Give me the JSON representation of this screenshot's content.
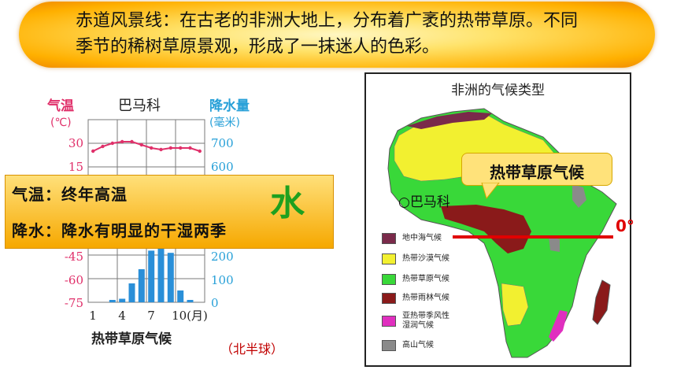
{
  "banner": {
    "line1": "赤道风景线：在古老的非洲大地上，分布着广袤的热带草原。不同",
    "line2": "季节的稀树草原景观，形成了一抹迷人的色彩。"
  },
  "climograph": {
    "station": "巴马科",
    "left_axis_title": "气温",
    "left_axis_unit": "(℃)",
    "right_axis_title": "降水量",
    "right_axis_unit": "(毫米)",
    "temp_ticks": [
      "30",
      "15",
      "-45",
      "-60",
      "-75"
    ],
    "precip_ticks": [
      "700",
      "600",
      "200",
      "100",
      "0"
    ],
    "month_ticks": [
      "1",
      "4",
      "7",
      "10(月)"
    ],
    "climate_type": "热带草原气候",
    "hemisphere": "（北半球）",
    "colors": {
      "temp_line": "#e0306a",
      "bars": "#2a8fd8",
      "axis_title": "#e0306a",
      "precip_title": "#27a0d8"
    }
  },
  "chart_data": {
    "type": "bar",
    "title": "巴马科",
    "xlabel": "(月)",
    "categories": [
      "1",
      "2",
      "3",
      "4",
      "5",
      "6",
      "7",
      "8",
      "9",
      "10",
      "11",
      "12"
    ],
    "series": [
      {
        "name": "降水量",
        "values": [
          0,
          0,
          10,
          15,
          80,
          140,
          220,
          310,
          210,
          50,
          10,
          0
        ]
      },
      {
        "name": "气温",
        "values": [
          25,
          28,
          30,
          31,
          31,
          29,
          27,
          26,
          27,
          27,
          27,
          25
        ]
      }
    ],
    "ylim_temp": [
      -75,
      30
    ],
    "ylim_precip": [
      0,
      700
    ]
  },
  "info": {
    "temp_line": "气温：终年高温",
    "precip_line": "降水：降水有明显的干湿两季",
    "water_char": "水"
  },
  "map": {
    "title": "非洲的气候类型",
    "callout": "热带草原气候",
    "bamako_label": "○巴马科",
    "equator_label": "0°",
    "legend": [
      {
        "label": "地中海气候",
        "color": "#7a2a4a"
      },
      {
        "label": "热带沙漠气候",
        "color": "#f2f030"
      },
      {
        "label": "热带草原气候",
        "color": "#39d839"
      },
      {
        "label": "热带雨林气候",
        "color": "#8a1a1a"
      },
      {
        "label": "亚热带季风性湿润气候",
        "label_line1": "亚热带季风性",
        "label_line2": "湿润气候",
        "color": "#e02fbf"
      },
      {
        "label": "高山气候",
        "color": "#8a8a8a"
      }
    ]
  }
}
